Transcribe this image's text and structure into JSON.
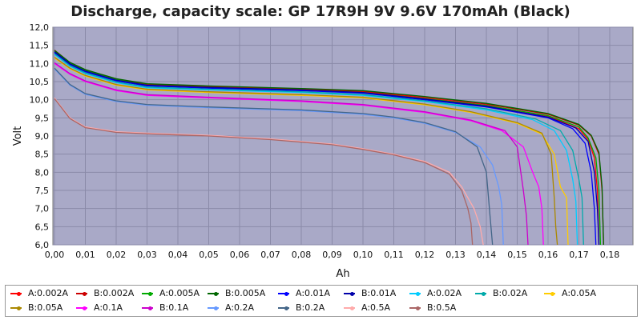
{
  "chart_data": {
    "type": "line",
    "title": "Discharge, capacity scale: GP 17R9H 9V 9.6V 170mAh (Black)",
    "xlabel": "Ah",
    "ylabel": "Volt",
    "xlim": [
      0,
      0.185
    ],
    "ylim": [
      6.0,
      12.0
    ],
    "x_ticks": [
      "0,00",
      "0,01",
      "0,02",
      "0,03",
      "0,04",
      "0,05",
      "0,06",
      "0,07",
      "0,08",
      "0,09",
      "0,10",
      "0,11",
      "0,12",
      "0,13",
      "0,14",
      "0,15",
      "0,16",
      "0,17",
      "0,18"
    ],
    "y_ticks": [
      "12,0",
      "11,5",
      "11,0",
      "10,5",
      "10,0",
      "9,5",
      "9,0",
      "8,5",
      "8,0",
      "7,5",
      "7,0",
      "6,5",
      "6,0"
    ],
    "grid": true,
    "legend_position": "bottom",
    "series": [
      {
        "name": "A:0.002A",
        "color": "#ff0000",
        "points": [
          [
            0,
            11.35
          ],
          [
            0.005,
            11.0
          ],
          [
            0.01,
            10.8
          ],
          [
            0.02,
            10.55
          ],
          [
            0.03,
            10.42
          ],
          [
            0.05,
            10.35
          ],
          [
            0.08,
            10.28
          ],
          [
            0.1,
            10.22
          ],
          [
            0.12,
            10.05
          ],
          [
            0.14,
            9.85
          ],
          [
            0.16,
            9.55
          ],
          [
            0.17,
            9.2
          ],
          [
            0.173,
            8.9
          ],
          [
            0.175,
            8.4
          ],
          [
            0.176,
            7.5
          ],
          [
            0.1765,
            6.0
          ]
        ]
      },
      {
        "name": "B:0.002A",
        "color": "#cc0000",
        "points": [
          [
            0,
            11.37
          ],
          [
            0.005,
            11.02
          ],
          [
            0.01,
            10.82
          ],
          [
            0.02,
            10.57
          ],
          [
            0.03,
            10.43
          ],
          [
            0.05,
            10.37
          ],
          [
            0.08,
            10.3
          ],
          [
            0.1,
            10.24
          ],
          [
            0.12,
            10.08
          ],
          [
            0.14,
            9.88
          ],
          [
            0.16,
            9.6
          ],
          [
            0.17,
            9.3
          ],
          [
            0.174,
            9.0
          ],
          [
            0.1765,
            8.5
          ],
          [
            0.1775,
            7.5
          ],
          [
            0.178,
            6.0
          ]
        ]
      },
      {
        "name": "A:0.005A",
        "color": "#00aa00",
        "points": [
          [
            0,
            11.33
          ],
          [
            0.005,
            11.0
          ],
          [
            0.01,
            10.8
          ],
          [
            0.02,
            10.55
          ],
          [
            0.03,
            10.4
          ],
          [
            0.05,
            10.34
          ],
          [
            0.08,
            10.27
          ],
          [
            0.1,
            10.2
          ],
          [
            0.12,
            10.03
          ],
          [
            0.14,
            9.84
          ],
          [
            0.16,
            9.56
          ],
          [
            0.17,
            9.25
          ],
          [
            0.173,
            8.95
          ],
          [
            0.1755,
            8.4
          ],
          [
            0.1765,
            7.5
          ],
          [
            0.177,
            6.0
          ]
        ]
      },
      {
        "name": "B:0.005A",
        "color": "#006600",
        "points": [
          [
            0,
            11.36
          ],
          [
            0.005,
            11.03
          ],
          [
            0.01,
            10.83
          ],
          [
            0.02,
            10.58
          ],
          [
            0.03,
            10.44
          ],
          [
            0.05,
            10.38
          ],
          [
            0.08,
            10.31
          ],
          [
            0.1,
            10.25
          ],
          [
            0.12,
            10.09
          ],
          [
            0.14,
            9.9
          ],
          [
            0.16,
            9.62
          ],
          [
            0.17,
            9.32
          ],
          [
            0.174,
            9.02
          ],
          [
            0.1765,
            8.55
          ],
          [
            0.1775,
            7.6
          ],
          [
            0.178,
            6.0
          ]
        ]
      },
      {
        "name": "A:0.01A",
        "color": "#0000ff",
        "points": [
          [
            0,
            11.3
          ],
          [
            0.005,
            10.97
          ],
          [
            0.01,
            10.77
          ],
          [
            0.02,
            10.52
          ],
          [
            0.03,
            10.38
          ],
          [
            0.05,
            10.32
          ],
          [
            0.08,
            10.25
          ],
          [
            0.1,
            10.18
          ],
          [
            0.12,
            10.0
          ],
          [
            0.14,
            9.8
          ],
          [
            0.16,
            9.5
          ],
          [
            0.168,
            9.2
          ],
          [
            0.172,
            8.8
          ],
          [
            0.174,
            8.0
          ],
          [
            0.175,
            7.0
          ],
          [
            0.1755,
            6.0
          ]
        ]
      },
      {
        "name": "B:0.01A",
        "color": "#0000aa",
        "points": [
          [
            0,
            11.32
          ],
          [
            0.005,
            10.99
          ],
          [
            0.01,
            10.79
          ],
          [
            0.02,
            10.54
          ],
          [
            0.03,
            10.4
          ],
          [
            0.05,
            10.34
          ],
          [
            0.08,
            10.27
          ],
          [
            0.1,
            10.2
          ],
          [
            0.12,
            10.02
          ],
          [
            0.14,
            9.82
          ],
          [
            0.16,
            9.52
          ],
          [
            0.169,
            9.22
          ],
          [
            0.173,
            8.85
          ],
          [
            0.175,
            8.0
          ],
          [
            0.176,
            7.0
          ],
          [
            0.1765,
            6.0
          ]
        ]
      },
      {
        "name": "A:0.02A",
        "color": "#00ccff",
        "points": [
          [
            0,
            11.25
          ],
          [
            0.005,
            10.92
          ],
          [
            0.01,
            10.72
          ],
          [
            0.02,
            10.47
          ],
          [
            0.03,
            10.33
          ],
          [
            0.05,
            10.27
          ],
          [
            0.08,
            10.2
          ],
          [
            0.1,
            10.12
          ],
          [
            0.12,
            9.95
          ],
          [
            0.14,
            9.72
          ],
          [
            0.155,
            9.45
          ],
          [
            0.162,
            9.15
          ],
          [
            0.166,
            8.6
          ],
          [
            0.168,
            7.8
          ],
          [
            0.169,
            7.2
          ],
          [
            0.1695,
            6.0
          ]
        ]
      },
      {
        "name": "B:0.02A",
        "color": "#00aaaa",
        "points": [
          [
            0,
            11.27
          ],
          [
            0.005,
            10.94
          ],
          [
            0.01,
            10.74
          ],
          [
            0.02,
            10.49
          ],
          [
            0.03,
            10.35
          ],
          [
            0.05,
            10.29
          ],
          [
            0.08,
            10.22
          ],
          [
            0.1,
            10.14
          ],
          [
            0.12,
            9.97
          ],
          [
            0.14,
            9.75
          ],
          [
            0.156,
            9.47
          ],
          [
            0.164,
            9.15
          ],
          [
            0.168,
            8.6
          ],
          [
            0.17,
            7.8
          ],
          [
            0.171,
            7.3
          ],
          [
            0.1715,
            6.0
          ]
        ]
      },
      {
        "name": "A:0.05A",
        "color": "#ffcc00",
        "points": [
          [
            0,
            11.15
          ],
          [
            0.005,
            10.85
          ],
          [
            0.01,
            10.65
          ],
          [
            0.02,
            10.4
          ],
          [
            0.03,
            10.27
          ],
          [
            0.05,
            10.2
          ],
          [
            0.08,
            10.12
          ],
          [
            0.1,
            10.05
          ],
          [
            0.12,
            9.86
          ],
          [
            0.135,
            9.65
          ],
          [
            0.15,
            9.35
          ],
          [
            0.158,
            9.05
          ],
          [
            0.162,
            8.5
          ],
          [
            0.164,
            7.6
          ],
          [
            0.166,
            7.3
          ],
          [
            0.1665,
            6.0
          ]
        ]
      },
      {
        "name": "B:0.05A",
        "color": "#aa8800",
        "points": [
          [
            0,
            11.17
          ],
          [
            0.005,
            10.87
          ],
          [
            0.01,
            10.67
          ],
          [
            0.02,
            10.42
          ],
          [
            0.03,
            10.29
          ],
          [
            0.05,
            10.22
          ],
          [
            0.08,
            10.14
          ],
          [
            0.1,
            10.07
          ],
          [
            0.12,
            9.88
          ],
          [
            0.135,
            9.67
          ],
          [
            0.15,
            9.37
          ],
          [
            0.158,
            9.08
          ],
          [
            0.161,
            8.5
          ],
          [
            0.162,
            7.3
          ],
          [
            0.1625,
            6.5
          ],
          [
            0.163,
            6.0
          ]
        ]
      },
      {
        "name": "A:0.1A",
        "color": "#ff00ff",
        "points": [
          [
            0,
            11.0
          ],
          [
            0.005,
            10.7
          ],
          [
            0.01,
            10.5
          ],
          [
            0.02,
            10.25
          ],
          [
            0.03,
            10.12
          ],
          [
            0.05,
            10.05
          ],
          [
            0.08,
            9.95
          ],
          [
            0.1,
            9.85
          ],
          [
            0.12,
            9.65
          ],
          [
            0.135,
            9.42
          ],
          [
            0.145,
            9.15
          ],
          [
            0.152,
            8.7
          ],
          [
            0.155,
            8.0
          ],
          [
            0.157,
            7.6
          ],
          [
            0.158,
            7.0
          ],
          [
            0.1585,
            6.0
          ]
        ]
      },
      {
        "name": "B:0.1A",
        "color": "#cc00cc",
        "points": [
          [
            0,
            11.02
          ],
          [
            0.005,
            10.72
          ],
          [
            0.01,
            10.52
          ],
          [
            0.02,
            10.27
          ],
          [
            0.03,
            10.14
          ],
          [
            0.05,
            10.07
          ],
          [
            0.08,
            9.97
          ],
          [
            0.1,
            9.87
          ],
          [
            0.12,
            9.67
          ],
          [
            0.135,
            9.44
          ],
          [
            0.146,
            9.15
          ],
          [
            0.15,
            8.7
          ],
          [
            0.152,
            7.5
          ],
          [
            0.153,
            6.8
          ],
          [
            0.1535,
            6.0
          ]
        ]
      },
      {
        "name": "A:0.2A",
        "color": "#6699ff",
        "points": [
          [
            0,
            10.85
          ],
          [
            0.005,
            10.4
          ],
          [
            0.01,
            10.15
          ],
          [
            0.02,
            9.95
          ],
          [
            0.03,
            9.85
          ],
          [
            0.05,
            9.78
          ],
          [
            0.08,
            9.7
          ],
          [
            0.1,
            9.6
          ],
          [
            0.11,
            9.5
          ],
          [
            0.12,
            9.35
          ],
          [
            0.13,
            9.1
          ],
          [
            0.138,
            8.7
          ],
          [
            0.142,
            8.2
          ],
          [
            0.144,
            7.6
          ],
          [
            0.145,
            7.1
          ],
          [
            0.1455,
            6.0
          ]
        ]
      },
      {
        "name": "B:0.2A",
        "color": "#446688",
        "points": [
          [
            0,
            10.87
          ],
          [
            0.005,
            10.42
          ],
          [
            0.01,
            10.17
          ],
          [
            0.02,
            9.97
          ],
          [
            0.03,
            9.87
          ],
          [
            0.05,
            9.8
          ],
          [
            0.08,
            9.72
          ],
          [
            0.1,
            9.62
          ],
          [
            0.11,
            9.52
          ],
          [
            0.12,
            9.37
          ],
          [
            0.13,
            9.12
          ],
          [
            0.137,
            8.7
          ],
          [
            0.14,
            8.0
          ],
          [
            0.141,
            7.0
          ],
          [
            0.142,
            6.0
          ]
        ]
      },
      {
        "name": "A:0.5A",
        "color": "#ffaaaa",
        "points": [
          [
            0,
            10.05
          ],
          [
            0.005,
            9.5
          ],
          [
            0.01,
            9.25
          ],
          [
            0.02,
            9.12
          ],
          [
            0.03,
            9.08
          ],
          [
            0.05,
            9.02
          ],
          [
            0.07,
            8.92
          ],
          [
            0.09,
            8.78
          ],
          [
            0.1,
            8.65
          ],
          [
            0.11,
            8.5
          ],
          [
            0.12,
            8.3
          ],
          [
            0.128,
            8.0
          ],
          [
            0.132,
            7.6
          ],
          [
            0.136,
            7.0
          ],
          [
            0.138,
            6.5
          ],
          [
            0.139,
            6.0
          ]
        ]
      },
      {
        "name": "B:0.5A",
        "color": "#aa6666",
        "points": [
          [
            0,
            10.03
          ],
          [
            0.005,
            9.48
          ],
          [
            0.01,
            9.23
          ],
          [
            0.02,
            9.1
          ],
          [
            0.03,
            9.06
          ],
          [
            0.05,
            9.0
          ],
          [
            0.07,
            8.9
          ],
          [
            0.09,
            8.76
          ],
          [
            0.1,
            8.63
          ],
          [
            0.11,
            8.48
          ],
          [
            0.12,
            8.27
          ],
          [
            0.128,
            7.95
          ],
          [
            0.132,
            7.5
          ],
          [
            0.134,
            7.0
          ],
          [
            0.135,
            6.6
          ],
          [
            0.1355,
            6.0
          ]
        ]
      }
    ]
  }
}
